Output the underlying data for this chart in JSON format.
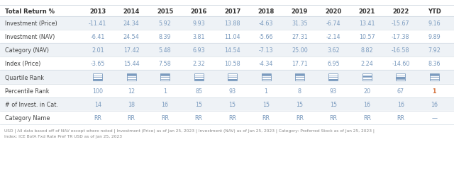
{
  "title": "Total Return %",
  "columns": [
    "2013",
    "2014",
    "2015",
    "2016",
    "2017",
    "2018",
    "2019",
    "2020",
    "2021",
    "2022",
    "YTD"
  ],
  "rows": [
    {
      "label": "Investment (Price)",
      "values": [
        "-11.41",
        "24.34",
        "5.92",
        "9.93",
        "13.88",
        "-4.63",
        "31.35",
        "-6.74",
        "13.41",
        "-15.67",
        "9.16"
      ],
      "bg": "#eef2f6",
      "highlight_col": -1,
      "is_quartile": false
    },
    {
      "label": "Investment (NAV)",
      "values": [
        "-6.41",
        "24.54",
        "8.39",
        "3.81",
        "11.04",
        "-5.66",
        "27.31",
        "-2.14",
        "10.57",
        "-17.38",
        "9.89"
      ],
      "bg": "#ffffff",
      "highlight_col": -1,
      "is_quartile": false
    },
    {
      "label": "Category (NAV)",
      "values": [
        "2.01",
        "17.42",
        "5.48",
        "6.93",
        "14.54",
        "-7.13",
        "25.00",
        "3.62",
        "8.82",
        "-16.58",
        "7.92"
      ],
      "bg": "#eef2f6",
      "highlight_col": -1,
      "is_quartile": false
    },
    {
      "label": "Index (Price)",
      "values": [
        "-3.65",
        "15.44",
        "7.58",
        "2.32",
        "10.58",
        "-4.34",
        "17.71",
        "6.95",
        "2.24",
        "-14.60",
        "8.36"
      ],
      "bg": "#ffffff",
      "highlight_col": -1,
      "is_quartile": false
    },
    {
      "label": "Quartile Rank",
      "values": [
        "",
        "",
        "",
        "",
        "",
        "",
        "",
        "",
        "",
        "",
        ""
      ],
      "quartile_vals": [
        4,
        1,
        1,
        4,
        4,
        1,
        1,
        4,
        2,
        3,
        1
      ],
      "bg": "#eef2f6",
      "highlight_col": -1,
      "is_quartile": true
    },
    {
      "label": "Percentile Rank",
      "values": [
        "100",
        "12",
        "1",
        "85",
        "93",
        "1",
        "8",
        "93",
        "20",
        "67",
        "1"
      ],
      "bg": "#ffffff",
      "highlight_col": 10,
      "is_quartile": false
    },
    {
      "label": "# of Invest. in Cat.",
      "values": [
        "14",
        "18",
        "16",
        "15",
        "15",
        "15",
        "15",
        "15",
        "16",
        "16",
        "16"
      ],
      "bg": "#eef2f6",
      "highlight_col": -1,
      "is_quartile": false
    },
    {
      "label": "Category Name",
      "values": [
        "RR",
        "RR",
        "RR",
        "RR",
        "RR",
        "RR",
        "RR",
        "RR",
        "RR",
        "RR",
        "—"
      ],
      "bg": "#ffffff",
      "highlight_col": -1,
      "is_quartile": false
    }
  ],
  "footer_line1": "USD | All data based off of NAV except where noted | Investment (Price) as of Jan 25, 2023 | Investment (NAV) as of Jan 25, 2023 | Category: Preferred Stock as of Jan 25, 2023 |",
  "footer_line2": "Index: ICE BofA Fxd Rate Pref TR USD as of Jan 25, 2023",
  "header_bg": "#ffffff",
  "data_text": "#7b9bbf",
  "label_text": "#444444",
  "header_bold_color": "#333333",
  "row_separator": "#d5dde5",
  "quartile_box_color": "#7b9bbf",
  "highlight_text_color": "#d4703a",
  "footer_color": "#888888"
}
